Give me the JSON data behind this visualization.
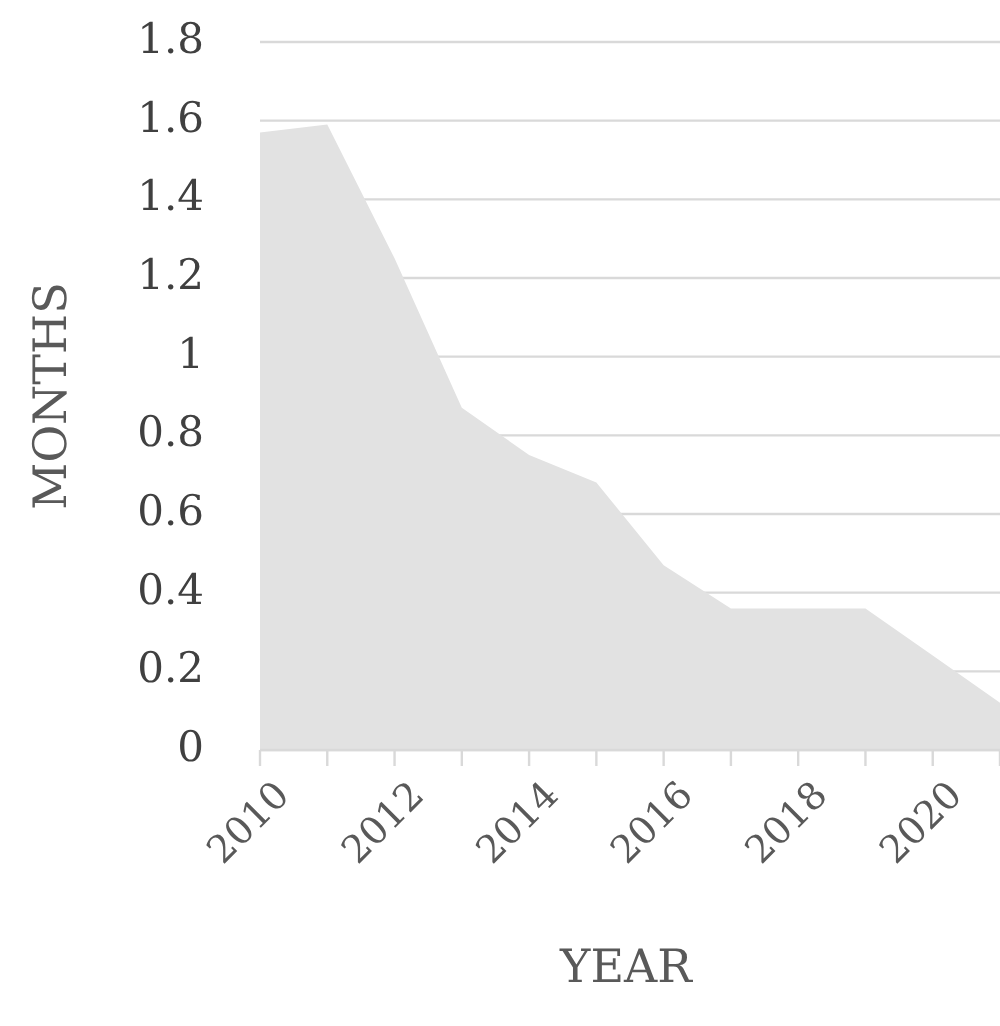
{
  "chart_data": {
    "type": "area",
    "xlabel": "YEAR",
    "ylabel": "MONTHS",
    "x": [
      2010,
      2011,
      2012,
      2013,
      2014,
      2015,
      2016,
      2017,
      2018,
      2019,
      2020,
      2021
    ],
    "series": [
      {
        "color": "#e2e2e2",
        "values": [
          1.57,
          1.59,
          1.25,
          0.87,
          0.75,
          0.68,
          0.47,
          0.36,
          0.36,
          0.36,
          0.24,
          0.12
        ]
      }
    ],
    "xlim": [
      2010,
      2021
    ],
    "xticks": [
      2010,
      {
        "value": 2011,
        "label": null
      },
      2012,
      {
        "value": 2013,
        "label": null
      },
      2014,
      {
        "value": 2015,
        "label": null
      },
      2016,
      {
        "value": 2017,
        "label": null
      },
      2018,
      {
        "value": 2019,
        "label": null
      },
      2020,
      {
        "value": 2021,
        "label": null
      }
    ],
    "ylim": [
      0,
      1.8
    ],
    "yticks": [
      0,
      0.2,
      0.4,
      0.6,
      0.8,
      1,
      1.2,
      1.4,
      1.6,
      1.8
    ],
    "grid": "y"
  }
}
